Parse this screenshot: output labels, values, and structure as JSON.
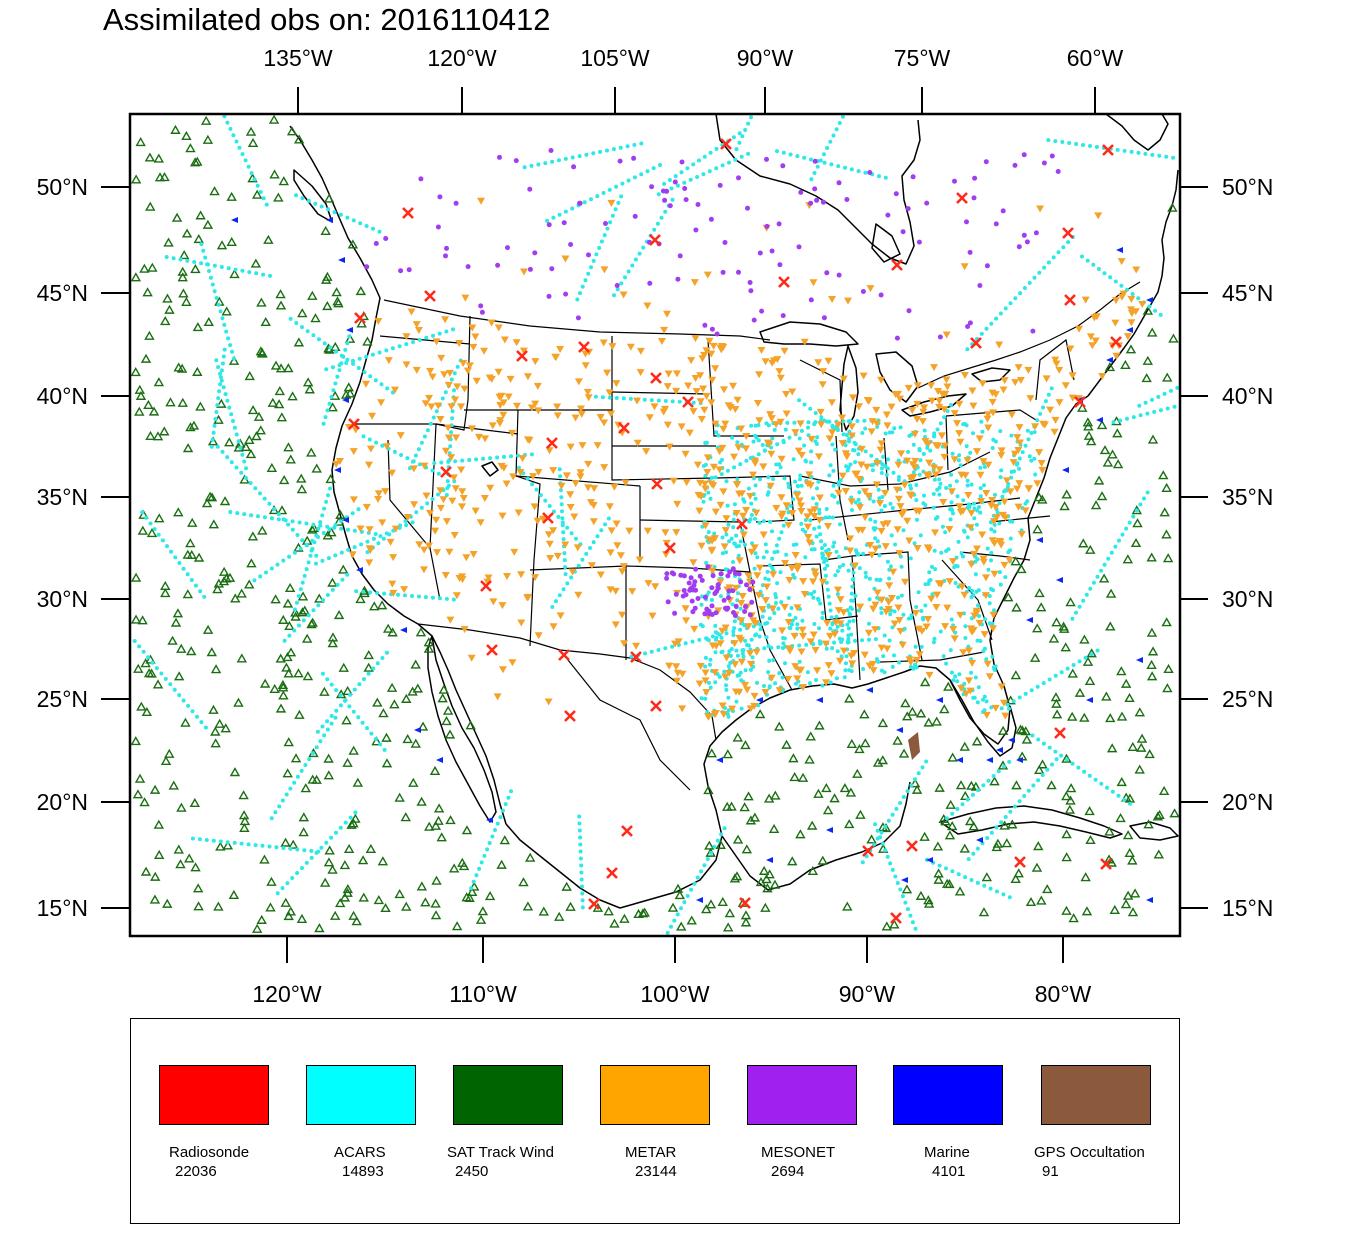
{
  "title": "Assimilated obs on: 2016110412",
  "top_lon_labels": [
    "135°W",
    "120°W",
    "105°W",
    "90°W",
    "75°W",
    "60°W"
  ],
  "bottom_lon_labels": [
    "120°W",
    "110°W",
    "100°W",
    "90°W",
    "80°W"
  ],
  "lat_labels": [
    "50°N",
    "45°N",
    "40°N",
    "35°N",
    "30°N",
    "25°N",
    "20°N",
    "15°N"
  ],
  "legend": [
    {
      "label": "Radiosonde",
      "count": "22036",
      "color": "#ff0000"
    },
    {
      "label": "ACARS",
      "count": "14893",
      "color": "#00ffff"
    },
    {
      "label": "SAT Track Wind",
      "count": "2450",
      "color": "#006400"
    },
    {
      "label": "METAR",
      "count": "23144",
      "color": "#ffa500"
    },
    {
      "label": "MESONET",
      "count": "2694",
      "color": "#a020f0"
    },
    {
      "label": "Marine",
      "count": "4101",
      "color": "#0000ff"
    },
    {
      "label": "GPS Occultation",
      "count": "91",
      "color": "#8b5a3c"
    }
  ],
  "symbol_colors": {
    "radiosonde": "#ff2a1a",
    "acars": "#2ee8e8",
    "sat_track_wind": "#1a6e12",
    "metar": "#f4a228",
    "mesonet": "#a23cf0",
    "marine": "#0a28f0",
    "gps_occultation": "#8b5a3c"
  }
}
